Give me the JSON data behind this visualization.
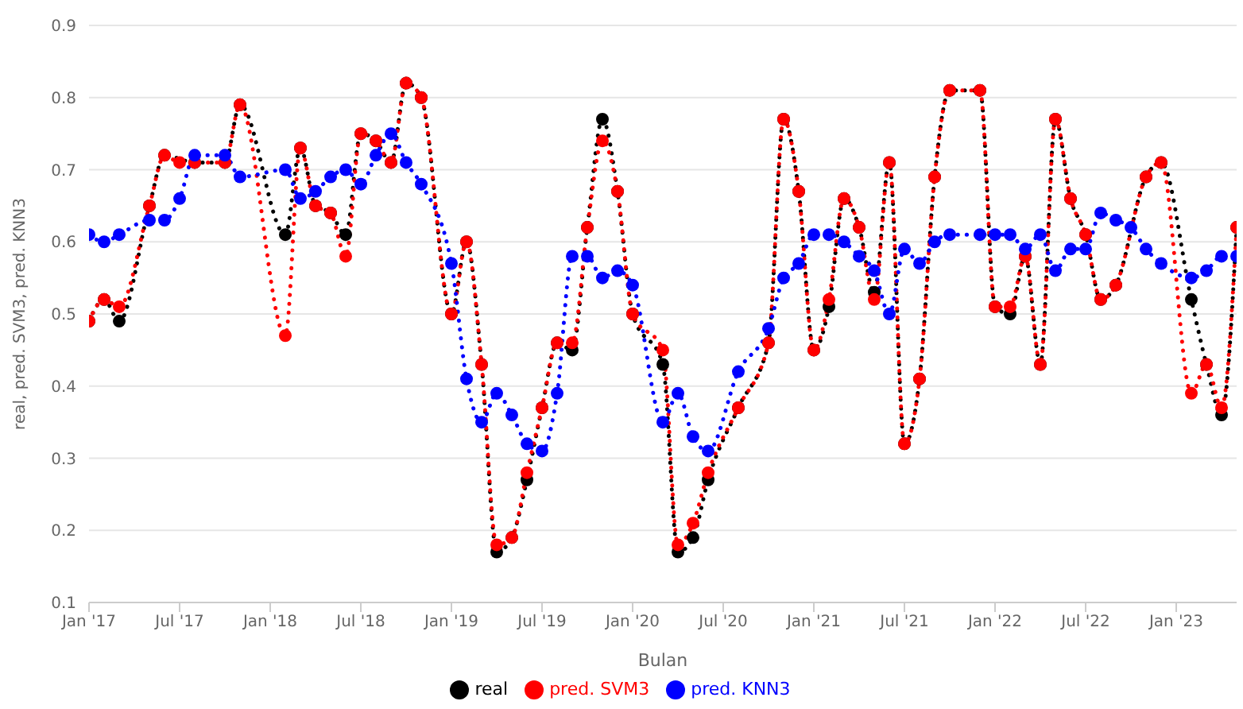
{
  "chart_data": {
    "type": "line",
    "xlabel": "Bulan",
    "ylabel": "real, pred. SVM3, pred. KNN3",
    "x": [
      "2017-01",
      "2017-02",
      "2017-03",
      "2017-05",
      "2017-06",
      "2017-07",
      "2017-08",
      "2017-10",
      "2017-11",
      "2018-02",
      "2018-03",
      "2018-04",
      "2018-05",
      "2018-06",
      "2018-07",
      "2018-08",
      "2018-09",
      "2018-10",
      "2018-11",
      "2019-01",
      "2019-02",
      "2019-03",
      "2019-04",
      "2019-05",
      "2019-06",
      "2019-07",
      "2019-08",
      "2019-09",
      "2019-10",
      "2019-11",
      "2019-12",
      "2020-01",
      "2020-03",
      "2020-04",
      "2020-05",
      "2020-06",
      "2020-08",
      "2020-10",
      "2020-11",
      "2020-12",
      "2021-01",
      "2021-02",
      "2021-03",
      "2021-04",
      "2021-05",
      "2021-06",
      "2021-07",
      "2021-08",
      "2021-09",
      "2021-10",
      "2021-12",
      "2022-01",
      "2022-02",
      "2022-03",
      "2022-04",
      "2022-05",
      "2022-06",
      "2022-07",
      "2022-08",
      "2022-09",
      "2022-10",
      "2022-11",
      "2022-12",
      "2023-02",
      "2023-03",
      "2023-04",
      "2023-05"
    ],
    "series": [
      {
        "name": "real",
        "color": "#000000",
        "values": [
          0.49,
          0.52,
          0.49,
          0.65,
          0.72,
          null,
          0.71,
          0.71,
          0.79,
          0.61,
          0.73,
          0.65,
          0.64,
          0.61,
          0.75,
          0.74,
          0.71,
          0.82,
          0.8,
          0.5,
          0.6,
          0.43,
          0.17,
          0.19,
          0.27,
          0.37,
          0.46,
          0.45,
          0.62,
          0.77,
          0.67,
          0.5,
          0.43,
          0.17,
          0.19,
          0.27,
          0.37,
          0.46,
          0.77,
          0.67,
          0.45,
          0.51,
          0.66,
          0.62,
          0.53,
          0.71,
          0.32,
          0.41,
          0.69,
          0.81,
          0.81,
          0.51,
          0.5,
          0.58,
          0.43,
          0.77,
          0.66,
          0.61,
          0.52,
          0.54,
          null,
          0.69,
          0.71,
          0.52,
          0.43,
          0.36,
          0.62
        ]
      },
      {
        "name": "pred. SVM3",
        "color": "#ff0000",
        "values": [
          0.49,
          0.52,
          0.51,
          0.65,
          0.72,
          0.71,
          0.71,
          0.71,
          0.79,
          0.47,
          0.73,
          0.65,
          0.64,
          0.58,
          0.75,
          0.74,
          0.71,
          0.82,
          0.8,
          0.5,
          0.6,
          0.43,
          0.18,
          0.19,
          0.28,
          0.37,
          0.46,
          0.46,
          0.62,
          0.74,
          0.67,
          0.5,
          0.45,
          0.18,
          0.21,
          0.28,
          0.37,
          0.46,
          0.77,
          0.67,
          0.45,
          0.52,
          0.66,
          0.62,
          0.52,
          0.71,
          0.32,
          0.41,
          0.69,
          0.81,
          0.81,
          0.51,
          0.51,
          0.58,
          0.43,
          0.77,
          0.66,
          0.61,
          0.52,
          0.54,
          null,
          0.69,
          0.71,
          0.39,
          0.43,
          0.37,
          0.62
        ]
      },
      {
        "name": "pred. KNN3",
        "color": "#0000ff",
        "values": [
          0.61,
          0.6,
          0.61,
          0.63,
          0.63,
          0.66,
          0.72,
          0.72,
          0.69,
          0.7,
          0.66,
          0.67,
          0.69,
          0.7,
          0.68,
          0.72,
          0.75,
          0.71,
          0.68,
          0.57,
          0.41,
          0.35,
          0.39,
          0.36,
          0.32,
          0.31,
          0.39,
          0.58,
          0.58,
          0.55,
          0.56,
          0.54,
          0.35,
          0.39,
          0.33,
          0.31,
          0.42,
          0.48,
          0.55,
          0.57,
          0.61,
          0.61,
          0.6,
          0.58,
          0.56,
          0.5,
          0.59,
          0.57,
          0.6,
          0.61,
          0.61,
          0.61,
          0.61,
          0.59,
          0.61,
          0.56,
          0.59,
          0.59,
          0.64,
          0.63,
          0.62,
          0.59,
          0.57,
          0.55,
          0.56,
          0.58,
          0.58
        ]
      }
    ],
    "xlim": [
      "2017-01",
      "2023-05"
    ],
    "xticks": [
      {
        "value": "2017-01",
        "label": "Jan '17"
      },
      {
        "value": "2017-07",
        "label": "Jul '17"
      },
      {
        "value": "2018-01",
        "label": "Jan '18"
      },
      {
        "value": "2018-07",
        "label": "Jul '18"
      },
      {
        "value": "2019-01",
        "label": "Jan '19"
      },
      {
        "value": "2019-07",
        "label": "Jul '19"
      },
      {
        "value": "2020-01",
        "label": "Jan '20"
      },
      {
        "value": "2020-07",
        "label": "Jul '20"
      },
      {
        "value": "2021-01",
        "label": "Jan '21"
      },
      {
        "value": "2021-07",
        "label": "Jul '21"
      },
      {
        "value": "2022-01",
        "label": "Jan '22"
      },
      {
        "value": "2022-07",
        "label": "Jul '22"
      },
      {
        "value": "2023-01",
        "label": "Jan '23"
      }
    ],
    "ylim": [
      0.1,
      0.9
    ],
    "yticks": [
      0.1,
      0.2,
      0.3,
      0.4,
      0.5,
      0.6,
      0.7,
      0.8,
      0.9
    ],
    "grid": "y",
    "legend": "bottom",
    "marker": "circle",
    "line_style": "dotted"
  }
}
